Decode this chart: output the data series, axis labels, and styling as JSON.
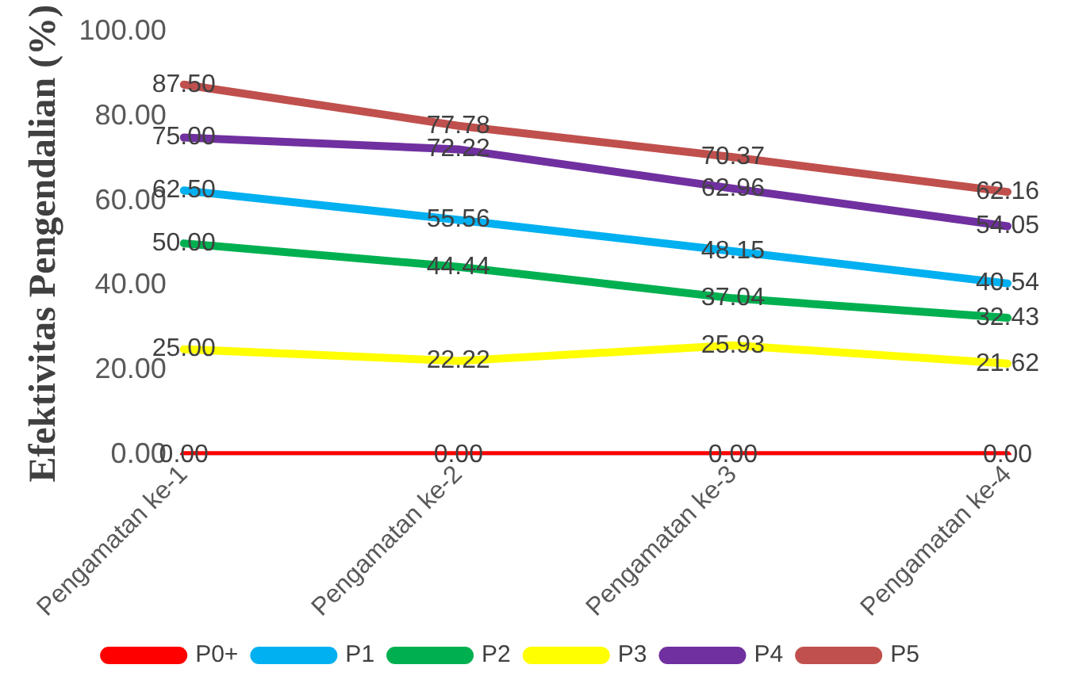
{
  "chart_data": {
    "type": "line",
    "ylabel": "Efektivitas Pengendalian (%)",
    "categories": [
      "Pengamatan ke-1",
      "Pengamatan ke-2",
      "Pengamatan ke-3",
      "Pengamatan ke-4"
    ],
    "series": [
      {
        "name": "P0+",
        "color": "#ff0000",
        "values": [
          0,
          0,
          0,
          0
        ],
        "value_labels": [
          "0.00",
          "0.00",
          "0.00",
          "0.00"
        ]
      },
      {
        "name": "P1",
        "color": "#00b0f0",
        "values": [
          62.5,
          55.56,
          48.15,
          40.54
        ],
        "value_labels": [
          "62.50",
          "55.56",
          "48.15",
          "40.54"
        ]
      },
      {
        "name": "P2",
        "color": "#00b050",
        "values": [
          50,
          44.44,
          37.04,
          32.43
        ],
        "value_labels": [
          "50.00",
          "44.44",
          "37.04",
          "32.43"
        ]
      },
      {
        "name": "P3",
        "color": "#ffff00",
        "values": [
          25,
          22.22,
          25.93,
          21.62
        ],
        "value_labels": [
          "25.00",
          "22.22",
          "25.93",
          "21.62"
        ]
      },
      {
        "name": "P4",
        "color": "#7030a0",
        "values": [
          75,
          72.22,
          62.96,
          54.05
        ],
        "value_labels": [
          "75.00",
          "72.22",
          "62.96",
          "54.05"
        ]
      },
      {
        "name": "P5",
        "color": "#c0504d",
        "values": [
          87.5,
          77.78,
          70.37,
          62.16
        ],
        "value_labels": [
          "87.50",
          "77.78",
          "70.37",
          "62.16"
        ]
      }
    ],
    "ylim": [
      0,
      100
    ],
    "yticks": [
      {
        "value": 0,
        "label": "0.00"
      },
      {
        "value": 20,
        "label": "20.00"
      },
      {
        "value": 40,
        "label": "40.00"
      },
      {
        "value": 60,
        "label": "60.00"
      },
      {
        "value": 80,
        "label": "80.00"
      },
      {
        "value": 100,
        "label": "100.00"
      }
    ],
    "grid": false,
    "legend": "bottom",
    "marker": "none",
    "line_style": "solid"
  }
}
